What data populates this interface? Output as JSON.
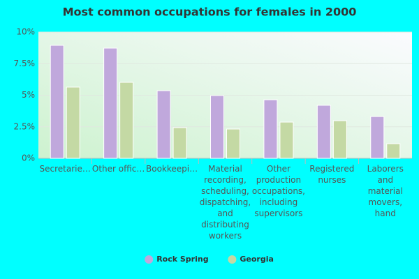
{
  "chart_data": {
    "type": "bar",
    "title": "Most common occupations for females in 2000",
    "categories": [
      "Secretarie…",
      "Other offic…",
      "Bookkeepi…",
      "Material recording, scheduling, dispatching, and distributing workers",
      "Other production occupations, including supervisors",
      "Registered nurses",
      "Laborers and material movers, hand"
    ],
    "series": [
      {
        "name": "Rock Spring",
        "color": "#c0a8dc",
        "values": [
          8.95,
          8.73,
          5.36,
          4.97,
          4.64,
          4.2,
          3.31
        ]
      },
      {
        "name": "Georgia",
        "color": "#c4d9a4",
        "values": [
          5.64,
          6.02,
          2.43,
          2.32,
          2.87,
          2.98,
          1.16
        ]
      }
    ],
    "ylim": [
      0,
      10
    ],
    "yticks": [
      {
        "value": 0,
        "label": "0%"
      },
      {
        "value": 2.5,
        "label": "2.5%"
      },
      {
        "value": 5,
        "label": "5%"
      },
      {
        "value": 7.5,
        "label": "7.5%"
      },
      {
        "value": 10,
        "label": "10%"
      }
    ],
    "grid": true,
    "legend": "bottom"
  }
}
